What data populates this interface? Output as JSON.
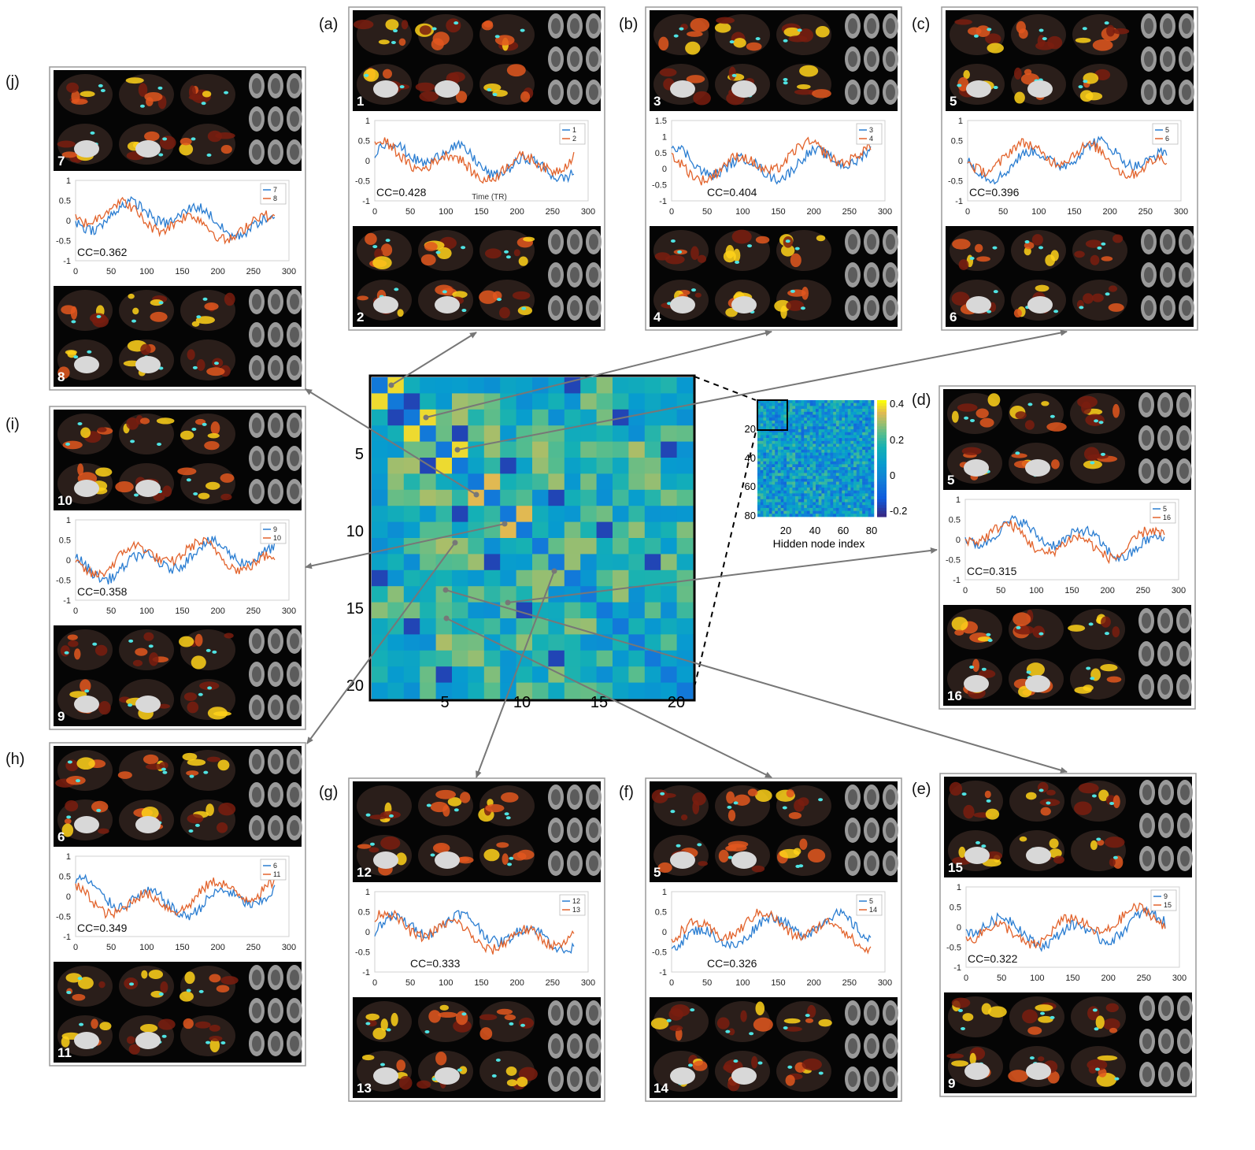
{
  "figure": {
    "big_matrix": {
      "y_ticks": [
        "5",
        "10",
        "15",
        "20"
      ],
      "x_ticks": [
        "5",
        "10",
        "15",
        "20"
      ]
    },
    "small_matrix": {
      "y_ticks": [
        "20",
        "40",
        "60",
        "80"
      ],
      "x_ticks": [
        "20",
        "40",
        "60",
        "80"
      ],
      "xlabel": "Hidden node index",
      "colorbar_ticks": [
        "0.4",
        "0.2",
        "0",
        "-0.2"
      ]
    },
    "time_xlabel": "Time (TR)",
    "panels": [
      {
        "letter": "(a)",
        "nodes": [
          "1",
          "2"
        ],
        "cc": "CC=0.428",
        "y_ticks": [
          "1",
          "0.5",
          "0",
          "-0.5",
          "-1"
        ],
        "x_ticks": [
          "0",
          "50",
          "100",
          "150",
          "200",
          "250",
          "300"
        ]
      },
      {
        "letter": "(b)",
        "nodes": [
          "3",
          "4"
        ],
        "cc": "CC=0.404",
        "y_ticks": [
          "1.5",
          "1",
          "0.5",
          "0",
          "-0.5",
          "-1"
        ],
        "x_ticks": [
          "0",
          "50",
          "100",
          "150",
          "200",
          "250",
          "300"
        ]
      },
      {
        "letter": "(c)",
        "nodes": [
          "5",
          "6"
        ],
        "cc": "CC=0.396",
        "y_ticks": [
          "1",
          "0.5",
          "0",
          "-0.5",
          "-1"
        ],
        "x_ticks": [
          "0",
          "50",
          "100",
          "150",
          "200",
          "250",
          "300"
        ]
      },
      {
        "letter": "(d)",
        "nodes": [
          "5",
          "16"
        ],
        "cc": "CC=0.315",
        "y_ticks": [
          "1",
          "0.5",
          "0",
          "-0.5",
          "-1"
        ],
        "x_ticks": [
          "0",
          "50",
          "100",
          "150",
          "200",
          "250",
          "300"
        ]
      },
      {
        "letter": "(e)",
        "nodes": [
          "15",
          "9"
        ],
        "legend": [
          "9",
          "15"
        ],
        "cc": "CC=0.322",
        "y_ticks": [
          "1",
          "0.5",
          "0",
          "-0.5",
          "-1"
        ],
        "x_ticks": [
          "0",
          "50",
          "100",
          "150",
          "200",
          "250",
          "300"
        ]
      },
      {
        "letter": "(f)",
        "nodes": [
          "5",
          "14"
        ],
        "cc": "CC=0.326",
        "y_ticks": [
          "1",
          "0.5",
          "0",
          "-0.5",
          "-1"
        ],
        "x_ticks": [
          "0",
          "50",
          "100",
          "150",
          "200",
          "250",
          "300"
        ]
      },
      {
        "letter": "(g)",
        "nodes": [
          "12",
          "13"
        ],
        "cc": "CC=0.333",
        "y_ticks": [
          "1",
          "0.5",
          "0",
          "-0.5",
          "-1"
        ],
        "x_ticks": [
          "0",
          "50",
          "100",
          "150",
          "200",
          "250",
          "300"
        ]
      },
      {
        "letter": "(h)",
        "nodes": [
          "6",
          "11"
        ],
        "cc": "CC=0.349",
        "y_ticks": [
          "1",
          "0.5",
          "0",
          "-0.5",
          "-1"
        ],
        "x_ticks": [
          "0",
          "50",
          "100",
          "150",
          "200",
          "250",
          "300"
        ]
      },
      {
        "letter": "(i)",
        "nodes": [
          "10",
          "9"
        ],
        "legend": [
          "9",
          "10"
        ],
        "cc": "CC=0.358",
        "y_ticks": [
          "1",
          "0.5",
          "0",
          "-0.5",
          "-1"
        ],
        "x_ticks": [
          "0",
          "50",
          "100",
          "150",
          "200",
          "250",
          "300"
        ]
      },
      {
        "letter": "(j)",
        "nodes": [
          "7",
          "8"
        ],
        "cc": "CC=0.362",
        "y_ticks": [
          "1",
          "0.5",
          "0",
          "-0.5",
          "-1"
        ],
        "x_ticks": [
          "0",
          "50",
          "100",
          "150",
          "200",
          "250",
          "300"
        ]
      }
    ],
    "colors": {
      "series_blue": "#2a7dd1",
      "series_orange": "#e2632c",
      "panel_border": "#9a9a9a",
      "arrow": "#777777"
    }
  }
}
